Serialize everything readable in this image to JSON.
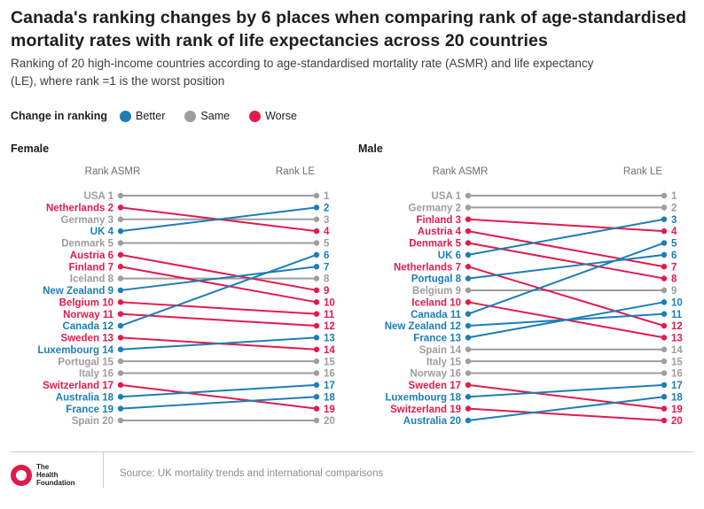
{
  "title": "Canada's ranking changes by 6 places when comparing rank of age-standardised mortality rates with rank of life expectancies across 20 countries",
  "subtitle": "Ranking of 20 high-income countries according to age-standardised mortality rate (ASMR) and life expectancy (LE), where rank =1 is the worst position",
  "legend": {
    "label": "Change in ranking",
    "items": [
      {
        "label": "Better",
        "key": "better"
      },
      {
        "label": "Same",
        "key": "same"
      },
      {
        "label": "Worse",
        "key": "worse"
      }
    ]
  },
  "colors": {
    "better": "#1d7db8",
    "same": "#9d9d9d",
    "worse": "#e41a4c",
    "header_gray": "#6e6e6e",
    "panel_title": "#1a1a1a",
    "guide_dotted": "#dcdcdc",
    "logo_red": "#e0194a"
  },
  "chart_data": [
    {
      "type": "slope",
      "panel": "Female",
      "col_left": "Rank ASMR",
      "col_right": "Rank LE",
      "rank_note": "rank 1 = worst position",
      "countries": [
        {
          "name": "USA",
          "asmr_rank": 1,
          "le_rank": 1,
          "change": "same"
        },
        {
          "name": "Netherlands",
          "asmr_rank": 2,
          "le_rank": 4,
          "change": "worse"
        },
        {
          "name": "Germany",
          "asmr_rank": 3,
          "le_rank": 3,
          "change": "same"
        },
        {
          "name": "UK",
          "asmr_rank": 4,
          "le_rank": 2,
          "change": "better"
        },
        {
          "name": "Denmark",
          "asmr_rank": 5,
          "le_rank": 5,
          "change": "same"
        },
        {
          "name": "Austria",
          "asmr_rank": 6,
          "le_rank": 9,
          "change": "worse"
        },
        {
          "name": "Finland",
          "asmr_rank": 7,
          "le_rank": 10,
          "change": "worse"
        },
        {
          "name": "Iceland",
          "asmr_rank": 8,
          "le_rank": 8,
          "change": "same"
        },
        {
          "name": "New Zealand",
          "asmr_rank": 9,
          "le_rank": 7,
          "change": "better"
        },
        {
          "name": "Belgium",
          "asmr_rank": 10,
          "le_rank": 11,
          "change": "worse"
        },
        {
          "name": "Norway",
          "asmr_rank": 11,
          "le_rank": 12,
          "change": "worse"
        },
        {
          "name": "Canada",
          "asmr_rank": 12,
          "le_rank": 6,
          "change": "better"
        },
        {
          "name": "Sweden",
          "asmr_rank": 13,
          "le_rank": 14,
          "change": "worse"
        },
        {
          "name": "Luxembourg",
          "asmr_rank": 14,
          "le_rank": 13,
          "change": "better"
        },
        {
          "name": "Portugal",
          "asmr_rank": 15,
          "le_rank": 15,
          "change": "same"
        },
        {
          "name": "Italy",
          "asmr_rank": 16,
          "le_rank": 16,
          "change": "same"
        },
        {
          "name": "Switzerland",
          "asmr_rank": 17,
          "le_rank": 19,
          "change": "worse"
        },
        {
          "name": "Australia",
          "asmr_rank": 18,
          "le_rank": 17,
          "change": "better"
        },
        {
          "name": "France",
          "asmr_rank": 19,
          "le_rank": 18,
          "change": "better"
        },
        {
          "name": "Spain",
          "asmr_rank": 20,
          "le_rank": 20,
          "change": "same"
        }
      ]
    },
    {
      "type": "slope",
      "panel": "Male",
      "col_left": "Rank ASMR",
      "col_right": "Rank LE",
      "rank_note": "rank 1 = worst position",
      "countries": [
        {
          "name": "USA",
          "asmr_rank": 1,
          "le_rank": 1,
          "change": "same"
        },
        {
          "name": "Germany",
          "asmr_rank": 2,
          "le_rank": 2,
          "change": "same"
        },
        {
          "name": "Finland",
          "asmr_rank": 3,
          "le_rank": 4,
          "change": "worse"
        },
        {
          "name": "Austria",
          "asmr_rank": 4,
          "le_rank": 7,
          "change": "worse"
        },
        {
          "name": "Denmark",
          "asmr_rank": 5,
          "le_rank": 8,
          "change": "worse"
        },
        {
          "name": "UK",
          "asmr_rank": 6,
          "le_rank": 3,
          "change": "better"
        },
        {
          "name": "Netherlands",
          "asmr_rank": 7,
          "le_rank": 12,
          "change": "worse"
        },
        {
          "name": "Portugal",
          "asmr_rank": 8,
          "le_rank": 6,
          "change": "better"
        },
        {
          "name": "Belgium",
          "asmr_rank": 9,
          "le_rank": 9,
          "change": "same"
        },
        {
          "name": "Iceland",
          "asmr_rank": 10,
          "le_rank": 13,
          "change": "worse"
        },
        {
          "name": "Canada",
          "asmr_rank": 11,
          "le_rank": 5,
          "change": "better"
        },
        {
          "name": "New Zealand",
          "asmr_rank": 12,
          "le_rank": 11,
          "change": "better"
        },
        {
          "name": "France",
          "asmr_rank": 13,
          "le_rank": 10,
          "change": "better"
        },
        {
          "name": "Spain",
          "asmr_rank": 14,
          "le_rank": 14,
          "change": "same"
        },
        {
          "name": "Italy",
          "asmr_rank": 15,
          "le_rank": 15,
          "change": "same"
        },
        {
          "name": "Norway",
          "asmr_rank": 16,
          "le_rank": 16,
          "change": "same"
        },
        {
          "name": "Sweden",
          "asmr_rank": 17,
          "le_rank": 19,
          "change": "worse"
        },
        {
          "name": "Luxembourg",
          "asmr_rank": 18,
          "le_rank": 17,
          "change": "better"
        },
        {
          "name": "Switzerland",
          "asmr_rank": 19,
          "le_rank": 20,
          "change": "worse"
        },
        {
          "name": "Australia",
          "asmr_rank": 20,
          "le_rank": 18,
          "change": "better"
        }
      ]
    }
  ],
  "footer": {
    "source": "Source: UK mortality trends and international comparisons",
    "logo_lines": [
      "The",
      "Health",
      "Foundation"
    ]
  }
}
